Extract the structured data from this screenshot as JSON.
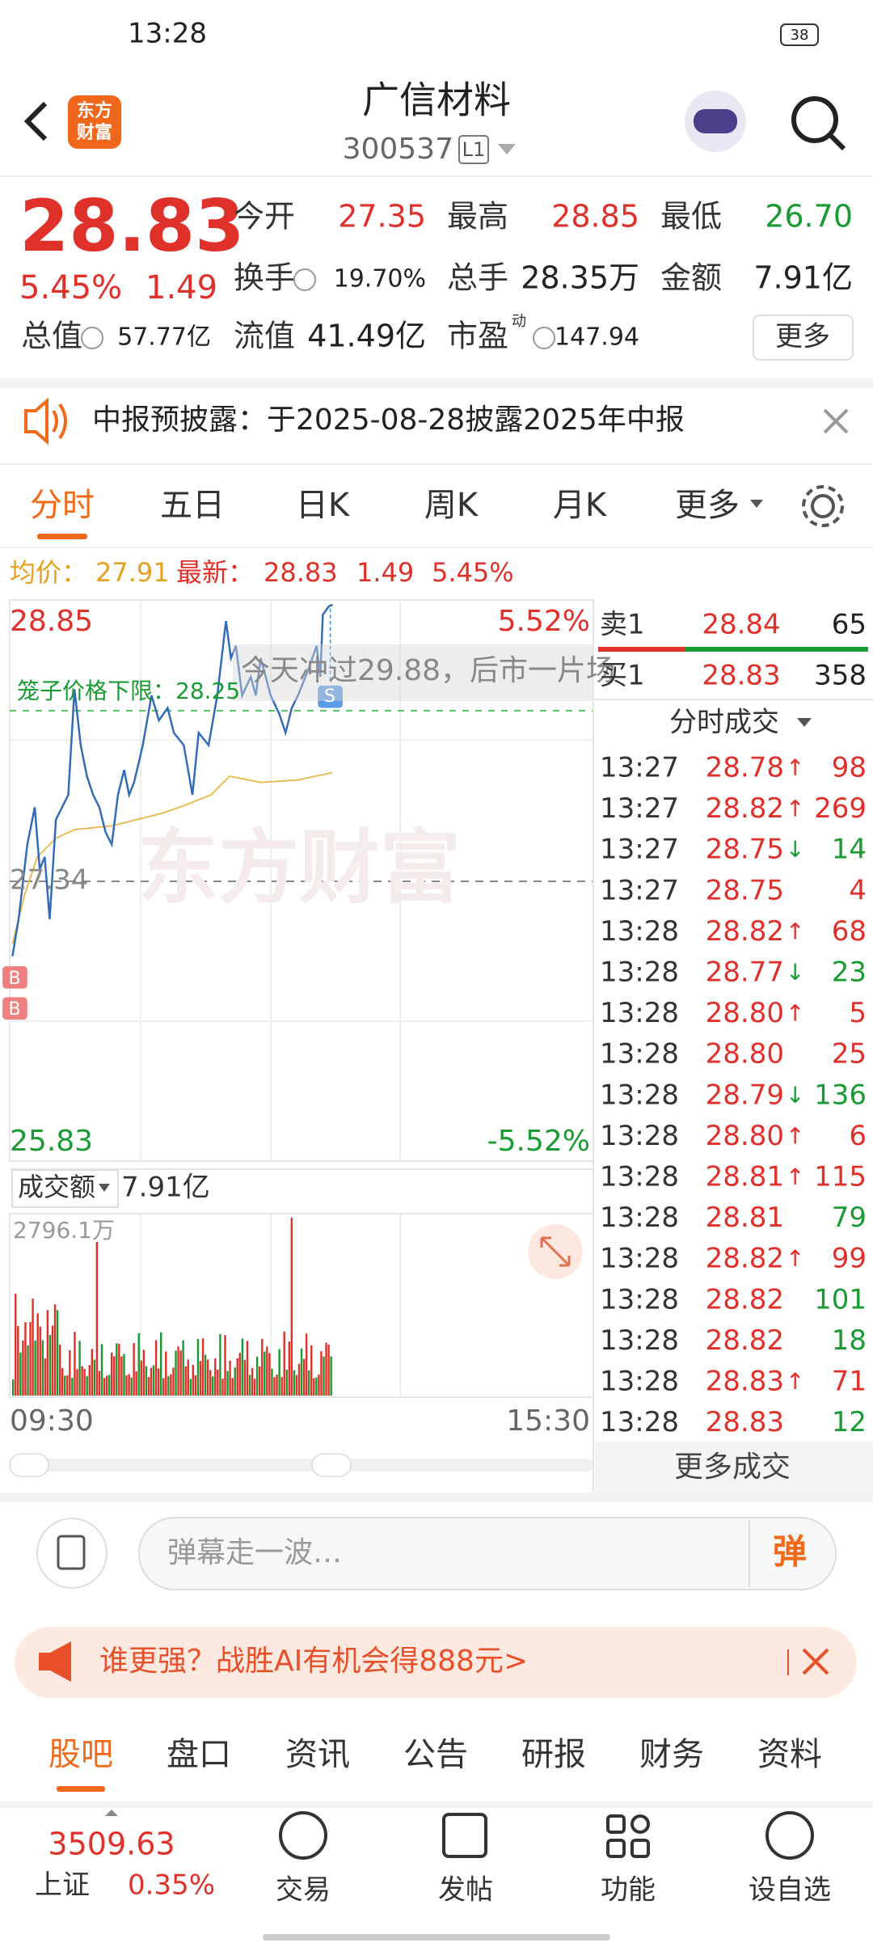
{
  "status_bar": {
    "time": "13:28",
    "battery": "38"
  },
  "header": {
    "logo": [
      "东方",
      "财富"
    ],
    "title": "广信材料",
    "code": "300537",
    "level": "L1"
  },
  "quote": {
    "price": "28.83",
    "change_percent": "5.45%",
    "change": "1.49",
    "stats": [
      [
        {
          "label": "今开",
          "value": "27.35",
          "color": "#e0302a"
        },
        {
          "label": "最高",
          "value": "28.85",
          "color": "#e0302a"
        },
        {
          "label": "最低",
          "value": "26.70",
          "color": "#1a9a32"
        }
      ],
      [
        {
          "label": "换手",
          "value": "19.70%",
          "info": true
        },
        {
          "label": "总手",
          "value": "28.35万"
        },
        {
          "label": "金额",
          "value": "7.91亿"
        }
      ],
      [
        {
          "label": "总值",
          "value": "57.77亿",
          "info": true
        },
        {
          "label": "流值",
          "value": "41.49亿"
        },
        {
          "label": "市盈",
          "sup": "动",
          "value": "147.94",
          "info": true
        }
      ]
    ],
    "more_button": "更多"
  },
  "notice": {
    "text": "中报预披露：于2025-08-28披露2025年中报"
  },
  "chart_tabs": [
    "分时",
    "五日",
    "日K",
    "周K",
    "月K",
    "更多"
  ],
  "legend": {
    "avg_label": "均价：",
    "avg": "27.91",
    "latest_label": "最新：",
    "latest": "28.83",
    "change": "1.49",
    "change_percent": "5.45%"
  },
  "chart": {
    "high_price": "28.85",
    "high_percent": "5.52%",
    "low_price": "25.83",
    "low_percent": "-5.52%",
    "open_price": "27.34",
    "cage_label": "笼子价格下限：28.25",
    "annotation": "今天冲过29.88，后市一片场",
    "volume_selector": "成交额",
    "volume_total": "7.91亿",
    "volume_max": "2796.1万",
    "time_start": "09:30",
    "time_end": "15:30",
    "watermark": "东方财富"
  },
  "order_book": [
    {
      "label": "卖1",
      "price": "28.84",
      "volume": "65"
    },
    {
      "label": "买1",
      "price": "28.83",
      "volume": "358"
    }
  ],
  "trades_title": "分时成交",
  "trades": [
    {
      "time": "13:27",
      "price": "28.78",
      "dir": "↑",
      "volume": "98",
      "side": "buy"
    },
    {
      "time": "13:27",
      "price": "28.82",
      "dir": "↑",
      "volume": "269",
      "side": "buy"
    },
    {
      "time": "13:27",
      "price": "28.75",
      "dir": "↓",
      "volume": "14",
      "side": "sell"
    },
    {
      "time": "13:27",
      "price": "28.75",
      "volume": "4",
      "side": "buy"
    },
    {
      "time": "13:28",
      "price": "28.82",
      "dir": "↑",
      "volume": "68",
      "side": "buy"
    },
    {
      "time": "13:28",
      "price": "28.77",
      "dir": "↓",
      "volume": "23",
      "side": "sell"
    },
    {
      "time": "13:28",
      "price": "28.80",
      "dir": "↑",
      "volume": "5",
      "side": "buy"
    },
    {
      "time": "13:28",
      "price": "28.80",
      "volume": "25",
      "side": "buy"
    },
    {
      "time": "13:28",
      "price": "28.79",
      "dir": "↓",
      "volume": "136",
      "side": "sell"
    },
    {
      "time": "13:28",
      "price": "28.80",
      "dir": "↑",
      "volume": "6",
      "side": "buy"
    },
    {
      "time": "13:28",
      "price": "28.81",
      "dir": "↑",
      "volume": "115",
      "side": "buy"
    },
    {
      "time": "13:28",
      "price": "28.81",
      "volume": "79",
      "side": "sell"
    },
    {
      "time": "13:28",
      "price": "28.82",
      "dir": "↑",
      "volume": "99",
      "side": "buy"
    },
    {
      "time": "13:28",
      "price": "28.82",
      "volume": "101",
      "side": "sell"
    },
    {
      "time": "13:28",
      "price": "28.82",
      "volume": "18",
      "side": "sell"
    },
    {
      "time": "13:28",
      "price": "28.83",
      "dir": "↑",
      "volume": "71",
      "side": "buy"
    },
    {
      "time": "13:28",
      "price": "28.83",
      "volume": "12",
      "side": "sell"
    }
  ],
  "more_trades": "更多成交",
  "comment": {
    "placeholder": "弹幕走一波…",
    "button": "弹"
  },
  "banner": {
    "text": "谁更强？战胜AI有机会得888元>"
  },
  "bottom_tabs": [
    "股吧",
    "盘口",
    "资讯",
    "公告",
    "研报",
    "财务",
    "资料"
  ],
  "index": {
    "value": "3509.63",
    "name": "上证",
    "change_percent": "0.35%"
  },
  "nav": [
    "交易",
    "发帖",
    "功能",
    "设自选"
  ]
}
